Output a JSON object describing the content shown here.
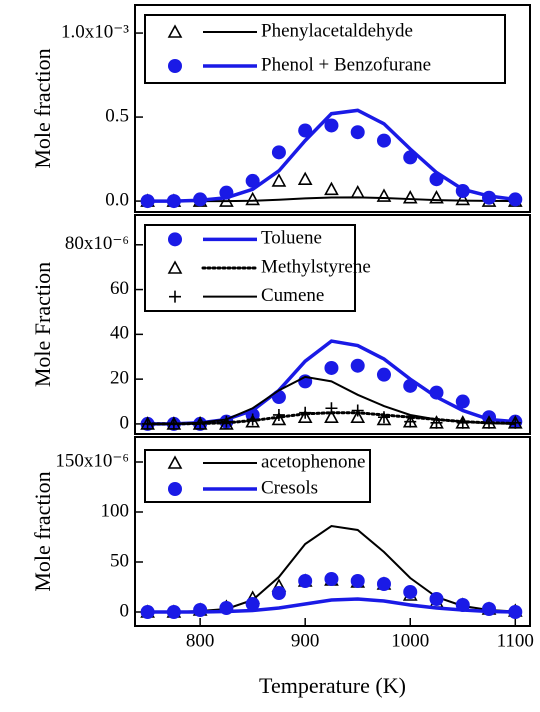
{
  "chart_data": [
    {
      "type": "line",
      "ylabel": "Mole fraction",
      "xlim": [
        738,
        1114
      ],
      "ylim": [
        -0.065,
        1.167
      ],
      "yticks": [
        {
          "value": 1.0,
          "label": "1.0x10⁻³"
        },
        0.5,
        {
          "value": 0,
          "label": "0.0"
        }
      ],
      "series": [
        {
          "name": "Phenylacetaldehyde",
          "color": "#000000",
          "marker": "triangle",
          "line": "solid",
          "x": [
            750,
            775,
            800,
            825,
            850,
            875,
            900,
            925,
            950,
            975,
            1000,
            1025,
            1050,
            1075,
            1100
          ],
          "values": [
            0,
            0,
            0,
            0,
            0.01,
            0.12,
            0.13,
            0.07,
            0.05,
            0.03,
            0.02,
            0.02,
            0.01,
            0,
            0
          ],
          "curve_x": [
            750,
            775,
            800,
            825,
            850,
            875,
            900,
            925,
            950,
            975,
            1000,
            1025,
            1050,
            1075,
            1100
          ],
          "curve_values": [
            0,
            0,
            0,
            0,
            0.002,
            0.008,
            0.016,
            0.021,
            0.022,
            0.018,
            0.012,
            0.006,
            0.003,
            0.001,
            0
          ]
        },
        {
          "name": "Phenol + Benzofurane",
          "color": "#1a1ae6",
          "marker": "circle",
          "line": "solid",
          "x": [
            750,
            775,
            800,
            825,
            850,
            875,
            900,
            925,
            950,
            975,
            1000,
            1025,
            1050,
            1075,
            1100
          ],
          "values": [
            0,
            0,
            0.01,
            0.05,
            0.12,
            0.29,
            0.42,
            0.45,
            0.41,
            0.36,
            0.26,
            0.13,
            0.06,
            0.02,
            0.01
          ],
          "curve_x": [
            750,
            775,
            800,
            825,
            850,
            875,
            900,
            925,
            950,
            975,
            1000,
            1025,
            1050,
            1075,
            1100
          ],
          "curve_values": [
            0,
            0,
            0.005,
            0.02,
            0.07,
            0.18,
            0.36,
            0.52,
            0.54,
            0.46,
            0.31,
            0.17,
            0.07,
            0.03,
            0.01
          ]
        }
      ]
    },
    {
      "type": "line",
      "ylabel": "Mole Fraction",
      "xlim": [
        738,
        1114
      ],
      "ylim": [
        -4.5,
        93.3
      ],
      "yticks": [
        {
          "value": 80,
          "label": "80x10⁻⁶"
        },
        60,
        40,
        20,
        0
      ],
      "series": [
        {
          "name": "Toluene",
          "color": "#1a1ae6",
          "marker": "circle",
          "line": "solid",
          "x": [
            750,
            775,
            800,
            825,
            850,
            875,
            900,
            925,
            950,
            975,
            1000,
            1025,
            1050,
            1075,
            1100
          ],
          "values": [
            0,
            0,
            0,
            1,
            4,
            12,
            19,
            25,
            26,
            22,
            17,
            14,
            10,
            3,
            1
          ],
          "curve_x": [
            750,
            775,
            800,
            825,
            850,
            875,
            900,
            925,
            950,
            975,
            1000,
            1025,
            1050,
            1075,
            1100
          ],
          "curve_values": [
            0,
            0,
            0.5,
            2,
            6,
            15,
            28,
            37,
            35,
            29,
            20,
            12,
            6,
            2,
            1
          ]
        },
        {
          "name": "Methylstyrene",
          "color": "#000000",
          "marker": "triangle",
          "line": "dotted",
          "x": [
            750,
            775,
            800,
            825,
            850,
            875,
            900,
            925,
            950,
            975,
            1000,
            1025,
            1050,
            1075,
            1100
          ],
          "values": [
            0,
            0,
            0,
            0,
            1,
            2,
            3,
            3,
            3,
            2,
            1,
            0.5,
            0.5,
            0.5,
            0.5
          ],
          "curve_x": [
            750,
            775,
            800,
            825,
            850,
            875,
            900,
            925,
            950,
            975,
            1000,
            1025,
            1050,
            1075,
            1100
          ],
          "curve_values": [
            0,
            0,
            0.2,
            0.5,
            1.5,
            3,
            4.5,
            5,
            5,
            4,
            3,
            2,
            1,
            0.5,
            0.2
          ]
        },
        {
          "name": "Cumene",
          "color": "#000000",
          "marker": "plus",
          "line": "solid",
          "x": [
            750,
            775,
            800,
            825,
            850,
            875,
            900,
            925,
            950,
            975,
            1000,
            1025,
            1050,
            1075,
            1100
          ],
          "values": [
            0,
            0,
            0.5,
            1,
            2,
            4,
            5,
            7,
            6,
            3,
            1,
            0.5,
            0.5,
            0.5,
            0.5
          ],
          "curve_x": [
            750,
            775,
            800,
            825,
            850,
            875,
            900,
            925,
            950,
            975,
            1000,
            1025,
            1050,
            1075,
            1100
          ],
          "curve_values": [
            0,
            0,
            0.5,
            2,
            7,
            15,
            21,
            19,
            13,
            8,
            4,
            2,
            1,
            0.3,
            0.1
          ]
        }
      ]
    },
    {
      "type": "line",
      "ylabel": "Mole fraction",
      "xlabel": "Temperature (K)",
      "xlim": [
        738,
        1114
      ],
      "ylim": [
        -14,
        175
      ],
      "xticks": [
        800,
        900,
        1000,
        1100
      ],
      "yticks": [
        {
          "value": 150,
          "label": "150x10⁻⁶"
        },
        100,
        50,
        0
      ],
      "series": [
        {
          "name": "acetophenone",
          "color": "#000000",
          "marker": "triangle",
          "line": "solid",
          "x": [
            750,
            775,
            800,
            825,
            850,
            875,
            900,
            925,
            950,
            975,
            1000,
            1025,
            1050,
            1075,
            1100
          ],
          "values": [
            0,
            0,
            2,
            5,
            14,
            26,
            31,
            32,
            30,
            28,
            17,
            10,
            7,
            3,
            1
          ],
          "curve_x": [
            750,
            775,
            800,
            825,
            850,
            875,
            900,
            925,
            950,
            975,
            1000,
            1025,
            1050,
            1075,
            1100
          ],
          "curve_values": [
            0,
            0,
            1,
            3,
            12,
            35,
            68,
            86,
            82,
            60,
            34,
            15,
            6,
            2,
            0.5
          ]
        },
        {
          "name": "Cresols",
          "color": "#1a1ae6",
          "marker": "circle",
          "line": "solid",
          "x": [
            750,
            775,
            800,
            825,
            850,
            875,
            900,
            925,
            950,
            975,
            1000,
            1025,
            1050,
            1075,
            1100
          ],
          "values": [
            0,
            0,
            2,
            4,
            8,
            19,
            31,
            33,
            31,
            28,
            20,
            13,
            7,
            3,
            0
          ],
          "curve_x": [
            750,
            775,
            800,
            825,
            850,
            875,
            900,
            925,
            950,
            975,
            1000,
            1025,
            1050,
            1075,
            1100
          ],
          "curve_values": [
            0,
            0,
            0,
            0.5,
            1.5,
            4,
            8,
            12,
            13,
            11,
            7,
            4,
            2,
            0.5,
            0
          ]
        }
      ]
    }
  ]
}
